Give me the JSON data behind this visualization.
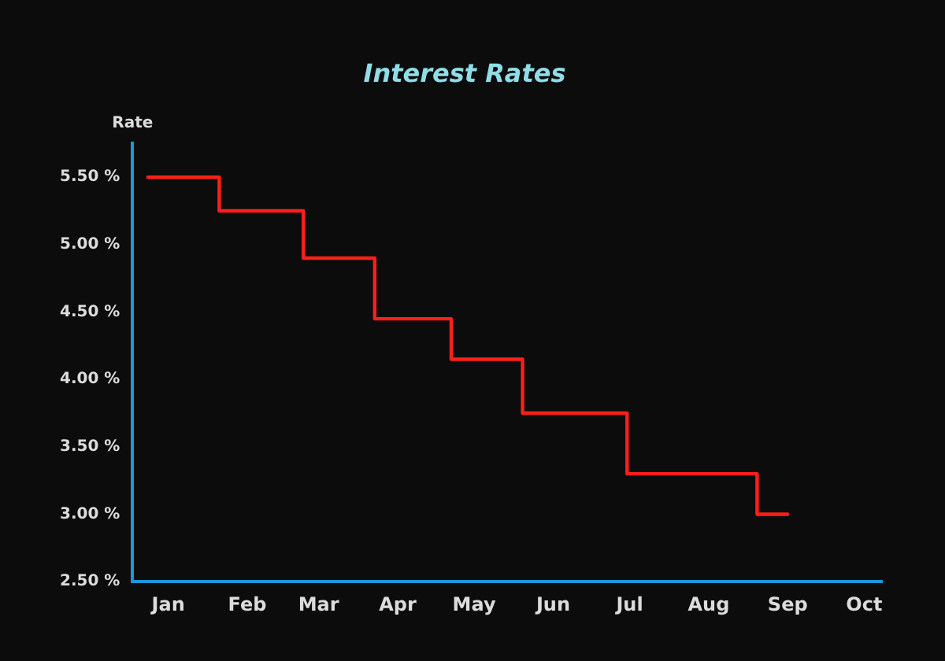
{
  "chart_data": {
    "type": "step",
    "title": "Interest Rates",
    "ylabel": "Rate",
    "x": [
      "--01-07",
      "--02-04",
      "--03-09",
      "--04-06",
      "--05-06",
      "--06-03",
      "--07-14",
      "--09-03",
      "--09-15"
    ],
    "series": [
      {
        "color": "#ff1f1a",
        "values": [
          5.5,
          5.25,
          4.9,
          4.45,
          4.15,
          3.75,
          3.3,
          3.0,
          3.0
        ]
      }
    ],
    "xlim": [
      "--01-01",
      "--10-22"
    ],
    "xticks": [
      {
        "value": "--01-15",
        "label": "Jan"
      },
      {
        "value": "--02-15",
        "label": "Feb"
      },
      {
        "value": "--03-15",
        "label": "Mar"
      },
      {
        "value": "--04-15",
        "label": "Apr"
      },
      {
        "value": "--05-15",
        "label": "May"
      },
      {
        "value": "--06-15",
        "label": "Jun"
      },
      {
        "value": "--07-15",
        "label": "Jul"
      },
      {
        "value": "--08-15",
        "label": "Aug"
      },
      {
        "value": "--09-15",
        "label": "Sep"
      },
      {
        "value": "--10-15",
        "label": "Oct"
      }
    ],
    "ylim": [
      2.5,
      5.75
    ],
    "yticks": [
      {
        "value": 2.5,
        "label": "2.50 %"
      },
      {
        "value": 3.0,
        "label": "3.00 %"
      },
      {
        "value": 3.5,
        "label": "3.50 %"
      },
      {
        "value": 4.0,
        "label": "4.00 %"
      },
      {
        "value": 4.5,
        "label": "4.50 %"
      },
      {
        "value": 5.0,
        "label": "5.00 %"
      },
      {
        "value": 5.5,
        "label": "5.50 %"
      }
    ],
    "grid": false,
    "legend": false,
    "marker": "none",
    "line_style": "solid"
  }
}
